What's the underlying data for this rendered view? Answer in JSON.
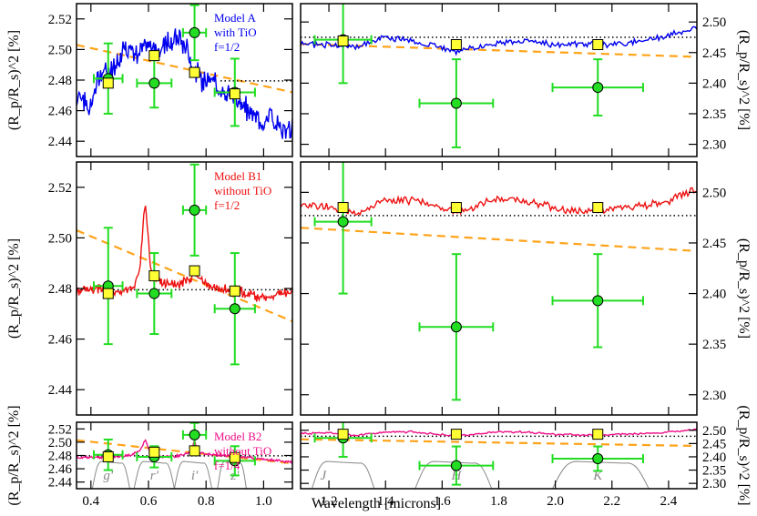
{
  "figure": {
    "xlabel": "Wavelength [microns]",
    "left_ylabel": "(R_p/R_s)^2 [%]",
    "right_ylabel": "(R_p/R_s)^2 [%]"
  },
  "colors": {
    "model_a": "#0000ee",
    "model_b1": "#ee1111",
    "model_b2": "#ee1188",
    "fit_line": "#ffa31a",
    "observations": "#22dd22",
    "binned_model": "#ffff33",
    "filters": "#888888",
    "reference": "#000000"
  },
  "chart_data": [
    {
      "id": "a-left",
      "type": "line",
      "row": 0,
      "side": "left",
      "model": "model_a",
      "seed": 11,
      "annotation": [
        "Model A",
        "with TiO",
        "f=1/2"
      ],
      "xlim": [
        0.35,
        1.1
      ],
      "ylim": [
        2.43,
        2.53
      ],
      "yticks": [
        "2.44",
        "2.46",
        "2.48",
        "2.50",
        "2.52"
      ],
      "xticks": [],
      "model_curve": [
        [
          0.35,
          2.472
        ],
        [
          0.38,
          2.466
        ],
        [
          0.4,
          2.462
        ],
        [
          0.42,
          2.478
        ],
        [
          0.45,
          2.486
        ],
        [
          0.48,
          2.488
        ],
        [
          0.5,
          2.495
        ],
        [
          0.53,
          2.5
        ],
        [
          0.56,
          2.497
        ],
        [
          0.59,
          2.504
        ],
        [
          0.62,
          2.498
        ],
        [
          0.65,
          2.502
        ],
        [
          0.68,
          2.505
        ],
        [
          0.71,
          2.507
        ],
        [
          0.73,
          2.503
        ],
        [
          0.75,
          2.49
        ],
        [
          0.77,
          2.485
        ],
        [
          0.79,
          2.478
        ],
        [
          0.81,
          2.486
        ],
        [
          0.84,
          2.474
        ],
        [
          0.87,
          2.471
        ],
        [
          0.9,
          2.468
        ],
        [
          0.93,
          2.462
        ],
        [
          0.96,
          2.458
        ],
        [
          0.99,
          2.452
        ],
        [
          1.02,
          2.458
        ],
        [
          1.05,
          2.45
        ],
        [
          1.08,
          2.446
        ],
        [
          1.1,
          2.448
        ]
      ],
      "wiggle": 0.006,
      "fit_line": [
        [
          0.35,
          2.503
        ],
        [
          1.1,
          2.472
        ]
      ],
      "reference_y": 2.4795,
      "reference_x": [
        0.85,
        1.1
      ],
      "binned_model": [
        [
          0.46,
          2.478
        ],
        [
          0.62,
          2.496
        ],
        [
          0.76,
          2.485
        ],
        [
          0.9,
          2.471
        ]
      ],
      "observations": [
        {
          "x": 0.46,
          "y": 2.481,
          "xerr": 0.05,
          "yerr": 0.023
        },
        {
          "x": 0.62,
          "y": 2.478,
          "xerr": 0.06,
          "yerr": 0.016
        },
        {
          "x": 0.76,
          "y": 2.511,
          "xerr": 0.04,
          "yerr": 0.018
        },
        {
          "x": 0.9,
          "y": 2.472,
          "xerr": 0.07,
          "yerr": 0.022
        }
      ]
    },
    {
      "id": "a-right",
      "type": "line",
      "row": 0,
      "side": "right",
      "model": "model_a",
      "seed": 21,
      "xlim": [
        1.1,
        2.5
      ],
      "ylim": [
        2.28,
        2.53
      ],
      "yticks": [
        "2.30",
        "2.35",
        "2.40",
        "2.45",
        "2.50"
      ],
      "xticks": [],
      "model_curve": [
        [
          1.1,
          2.465
        ],
        [
          1.2,
          2.462
        ],
        [
          1.3,
          2.46
        ],
        [
          1.4,
          2.475
        ],
        [
          1.5,
          2.468
        ],
        [
          1.6,
          2.458
        ],
        [
          1.65,
          2.452
        ],
        [
          1.7,
          2.458
        ],
        [
          1.8,
          2.466
        ],
        [
          1.9,
          2.47
        ],
        [
          2.0,
          2.462
        ],
        [
          2.1,
          2.465
        ],
        [
          2.2,
          2.463
        ],
        [
          2.3,
          2.468
        ],
        [
          2.4,
          2.478
        ],
        [
          2.5,
          2.49
        ]
      ],
      "wiggle": 0.004,
      "fit_line": [
        [
          1.1,
          2.464
        ],
        [
          2.5,
          2.443
        ]
      ],
      "reference_y": 2.475,
      "reference_x": [
        1.1,
        2.5
      ],
      "binned_model": [
        [
          1.25,
          2.469
        ],
        [
          1.65,
          2.463
        ],
        [
          2.15,
          2.463
        ]
      ],
      "observations": [
        {
          "x": 1.25,
          "y": 2.471,
          "xerr": 0.1,
          "yerr": 0.071
        },
        {
          "x": 1.65,
          "y": 2.367,
          "xerr": 0.13,
          "yerr": 0.072
        },
        {
          "x": 2.15,
          "y": 2.393,
          "xerr": 0.16,
          "yerr": 0.046
        }
      ]
    },
    {
      "id": "b1-left",
      "type": "line",
      "row": 1,
      "side": "left",
      "model": "model_b1",
      "seed": 31,
      "annotation": [
        "Model B1",
        "without TiO",
        "f=1/2"
      ],
      "xlim": [
        0.35,
        1.1
      ],
      "ylim": [
        2.43,
        2.53
      ],
      "yticks": [
        "2.44",
        "2.46",
        "2.48",
        "2.50",
        "2.52"
      ],
      "xticks": [],
      "model_curve": [
        [
          0.35,
          2.479
        ],
        [
          0.45,
          2.48
        ],
        [
          0.5,
          2.479
        ],
        [
          0.55,
          2.481
        ],
        [
          0.57,
          2.488
        ],
        [
          0.585,
          2.51
        ],
        [
          0.59,
          2.514
        ],
        [
          0.595,
          2.506
        ],
        [
          0.61,
          2.486
        ],
        [
          0.65,
          2.482
        ],
        [
          0.7,
          2.481
        ],
        [
          0.75,
          2.484
        ],
        [
          0.76,
          2.49
        ],
        [
          0.77,
          2.484
        ],
        [
          0.8,
          2.481
        ],
        [
          0.85,
          2.48
        ],
        [
          0.9,
          2.479
        ],
        [
          0.95,
          2.478
        ],
        [
          1.0,
          2.476
        ],
        [
          1.05,
          2.478
        ],
        [
          1.1,
          2.479
        ]
      ],
      "wiggle": 0.0015,
      "fit_line": [
        [
          0.35,
          2.503
        ],
        [
          1.1,
          2.467
        ]
      ],
      "reference_y": 2.4795,
      "reference_x": [
        0.35,
        1.1
      ],
      "binned_model": [
        [
          0.46,
          2.478
        ],
        [
          0.62,
          2.485
        ],
        [
          0.76,
          2.487
        ],
        [
          0.9,
          2.479
        ]
      ],
      "observations": [
        {
          "x": 0.46,
          "y": 2.481,
          "xerr": 0.05,
          "yerr": 0.023
        },
        {
          "x": 0.62,
          "y": 2.478,
          "xerr": 0.06,
          "yerr": 0.016
        },
        {
          "x": 0.76,
          "y": 2.511,
          "xerr": 0.04,
          "yerr": 0.018
        },
        {
          "x": 0.9,
          "y": 2.472,
          "xerr": 0.07,
          "yerr": 0.022
        }
      ]
    },
    {
      "id": "b1-right",
      "type": "line",
      "row": 1,
      "side": "right",
      "model": "model_b1",
      "seed": 41,
      "xlim": [
        1.1,
        2.5
      ],
      "ylim": [
        2.28,
        2.53
      ],
      "yticks": [
        "2.30",
        "2.35",
        "2.40",
        "2.45",
        "2.50"
      ],
      "xticks": [],
      "model_curve": [
        [
          1.1,
          2.487
        ],
        [
          1.2,
          2.486
        ],
        [
          1.3,
          2.478
        ],
        [
          1.4,
          2.492
        ],
        [
          1.5,
          2.492
        ],
        [
          1.6,
          2.484
        ],
        [
          1.65,
          2.48
        ],
        [
          1.7,
          2.484
        ],
        [
          1.8,
          2.494
        ],
        [
          1.9,
          2.492
        ],
        [
          2.0,
          2.484
        ],
        [
          2.1,
          2.482
        ],
        [
          2.2,
          2.484
        ],
        [
          2.3,
          2.486
        ],
        [
          2.4,
          2.492
        ],
        [
          2.5,
          2.503
        ]
      ],
      "wiggle": 0.003,
      "fit_line": [
        [
          1.1,
          2.465
        ],
        [
          2.5,
          2.442
        ]
      ],
      "reference_y": 2.477,
      "reference_x": [
        1.1,
        2.5
      ],
      "binned_model": [
        [
          1.25,
          2.485
        ],
        [
          1.65,
          2.485
        ],
        [
          2.15,
          2.485
        ]
      ],
      "observations": [
        {
          "x": 1.25,
          "y": 2.471,
          "xerr": 0.1,
          "yerr": 0.071
        },
        {
          "x": 1.65,
          "y": 2.367,
          "xerr": 0.13,
          "yerr": 0.072
        },
        {
          "x": 2.15,
          "y": 2.393,
          "xerr": 0.16,
          "yerr": 0.046
        }
      ]
    },
    {
      "id": "b2-left",
      "type": "line",
      "row": 2,
      "side": "left",
      "model": "model_b2",
      "seed": 51,
      "annotation": [
        "Model B2",
        "without TiO",
        "f=1/4"
      ],
      "xlim": [
        0.35,
        1.1
      ],
      "ylim": [
        2.43,
        2.53
      ],
      "yticks": [
        "2.44",
        "2.46",
        "2.48",
        "2.50",
        "2.52"
      ],
      "xticks": [
        "0.4",
        "0.6",
        "0.8",
        "1.0"
      ],
      "xtick_values": [
        0.4,
        0.6,
        0.8,
        1.0
      ],
      "model_curve": [
        [
          0.35,
          2.477
        ],
        [
          0.4,
          2.477
        ],
        [
          0.45,
          2.477
        ],
        [
          0.5,
          2.478
        ],
        [
          0.54,
          2.48
        ],
        [
          0.57,
          2.488
        ],
        [
          0.585,
          2.5
        ],
        [
          0.59,
          2.504
        ],
        [
          0.595,
          2.496
        ],
        [
          0.61,
          2.482
        ],
        [
          0.65,
          2.478
        ],
        [
          0.7,
          2.479
        ],
        [
          0.74,
          2.484
        ],
        [
          0.755,
          2.496
        ],
        [
          0.76,
          2.502
        ],
        [
          0.765,
          2.494
        ],
        [
          0.78,
          2.484
        ],
        [
          0.8,
          2.482
        ],
        [
          0.85,
          2.481
        ],
        [
          0.9,
          2.479
        ],
        [
          0.95,
          2.477
        ],
        [
          1.0,
          2.474
        ],
        [
          1.05,
          2.472
        ],
        [
          1.1,
          2.47
        ]
      ],
      "wiggle": 0.0015,
      "fit_line": [
        [
          0.35,
          2.503
        ],
        [
          1.1,
          2.468
        ]
      ],
      "reference_y": 2.4795,
      "reference_x": [
        0.35,
        1.1
      ],
      "binned_model": [
        [
          0.46,
          2.478
        ],
        [
          0.62,
          2.485
        ],
        [
          0.76,
          2.487
        ],
        [
          0.9,
          2.477
        ]
      ],
      "observations": [
        {
          "x": 0.46,
          "y": 2.481,
          "xerr": 0.05,
          "yerr": 0.023
        },
        {
          "x": 0.62,
          "y": 2.478,
          "xerr": 0.06,
          "yerr": 0.016
        },
        {
          "x": 0.76,
          "y": 2.511,
          "xerr": 0.04,
          "yerr": 0.018
        },
        {
          "x": 0.9,
          "y": 2.472,
          "xerr": 0.07,
          "yerr": 0.022
        }
      ],
      "filters": [
        {
          "label": "g'",
          "label_x": 0.46,
          "center": 0.47,
          "width": 0.13
        },
        {
          "label": "r'",
          "label_x": 0.62,
          "center": 0.62,
          "width": 0.14
        },
        {
          "label": "i'",
          "label_x": 0.76,
          "center": 0.755,
          "width": 0.13
        },
        {
          "label": "z'",
          "label_x": 0.9,
          "center": 0.89,
          "width": 0.1
        }
      ]
    },
    {
      "id": "b2-right",
      "type": "line",
      "row": 2,
      "side": "right",
      "model": "model_b2",
      "seed": 61,
      "xlim": [
        1.1,
        2.5
      ],
      "ylim": [
        2.28,
        2.53
      ],
      "yticks": [
        "2.30",
        "2.35",
        "2.40",
        "2.45",
        "2.50"
      ],
      "xticks": [
        "1.2",
        "1.4",
        "1.6",
        "1.8",
        "2.0",
        "2.2",
        "2.4"
      ],
      "xtick_values": [
        1.2,
        1.4,
        1.6,
        1.8,
        2.0,
        2.2,
        2.4
      ],
      "model_curve": [
        [
          1.1,
          2.488
        ],
        [
          1.2,
          2.49
        ],
        [
          1.3,
          2.481
        ],
        [
          1.4,
          2.494
        ],
        [
          1.5,
          2.493
        ],
        [
          1.6,
          2.483
        ],
        [
          1.65,
          2.481
        ],
        [
          1.7,
          2.483
        ],
        [
          1.8,
          2.494
        ],
        [
          1.9,
          2.493
        ],
        [
          2.0,
          2.484
        ],
        [
          2.1,
          2.482
        ],
        [
          2.2,
          2.484
        ],
        [
          2.3,
          2.487
        ],
        [
          2.4,
          2.493
        ],
        [
          2.5,
          2.503
        ]
      ],
      "wiggle": 0.003,
      "fit_line": [
        [
          1.1,
          2.466
        ],
        [
          2.5,
          2.441
        ]
      ],
      "reference_y": 2.4775,
      "reference_x": [
        1.1,
        2.5
      ],
      "binned_model": [
        [
          1.25,
          2.485
        ],
        [
          1.65,
          2.485
        ],
        [
          2.15,
          2.485
        ]
      ],
      "observations": [
        {
          "x": 1.25,
          "y": 2.471,
          "xerr": 0.1,
          "yerr": 0.071
        },
        {
          "x": 1.65,
          "y": 2.367,
          "xerr": 0.13,
          "yerr": 0.072
        },
        {
          "x": 2.15,
          "y": 2.393,
          "xerr": 0.16,
          "yerr": 0.046
        }
      ],
      "filters": [
        {
          "label": "J",
          "label_x": 1.18,
          "center": 1.25,
          "width": 0.22
        },
        {
          "label": "H",
          "label_x": 1.65,
          "center": 1.64,
          "width": 0.27
        },
        {
          "label": "K",
          "label_x": 2.15,
          "center": 2.16,
          "width": 0.34
        }
      ]
    }
  ]
}
